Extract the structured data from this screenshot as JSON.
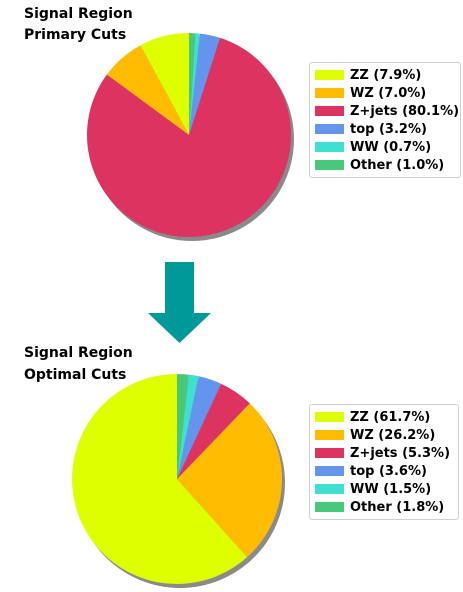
{
  "chart_data": [
    {
      "type": "pie",
      "title_lines": [
        "Signal Region",
        "Primary Cuts"
      ],
      "slices": [
        {
          "label": "ZZ (7.9%)",
          "value": 7.9,
          "color": "#ddff00"
        },
        {
          "label": "WZ (7.0%)",
          "value": 7.0,
          "color": "#ffbb00"
        },
        {
          "label": "Z+jets (80.1%)",
          "value": 80.1,
          "color": "#dc3361"
        },
        {
          "label": "top (3.2%)",
          "value": 3.2,
          "color": "#6495ed"
        },
        {
          "label": "WW (0.7%)",
          "value": 0.7,
          "color": "#40e0d0"
        },
        {
          "label": "Other (1.0%)",
          "value": 1.0,
          "color": "#48c878"
        }
      ],
      "shadow": true,
      "legend": "right"
    },
    {
      "type": "pie",
      "title_lines": [
        "Signal Region",
        "Optimal Cuts"
      ],
      "slices": [
        {
          "label": "ZZ (61.7%)",
          "value": 61.7,
          "color": "#ddff00"
        },
        {
          "label": "WZ (26.2%)",
          "value": 26.2,
          "color": "#ffbb00"
        },
        {
          "label": "Z+jets (5.3%)",
          "value": 5.3,
          "color": "#dc3361"
        },
        {
          "label": "top (3.6%)",
          "value": 3.6,
          "color": "#6495ed"
        },
        {
          "label": "WW (1.5%)",
          "value": 1.5,
          "color": "#40e0d0"
        },
        {
          "label": "Other (1.8%)",
          "value": 1.8,
          "color": "#48c878"
        }
      ],
      "shadow": true,
      "legend": "right"
    }
  ],
  "arrow": {
    "color": "#009999",
    "direction": "down"
  }
}
